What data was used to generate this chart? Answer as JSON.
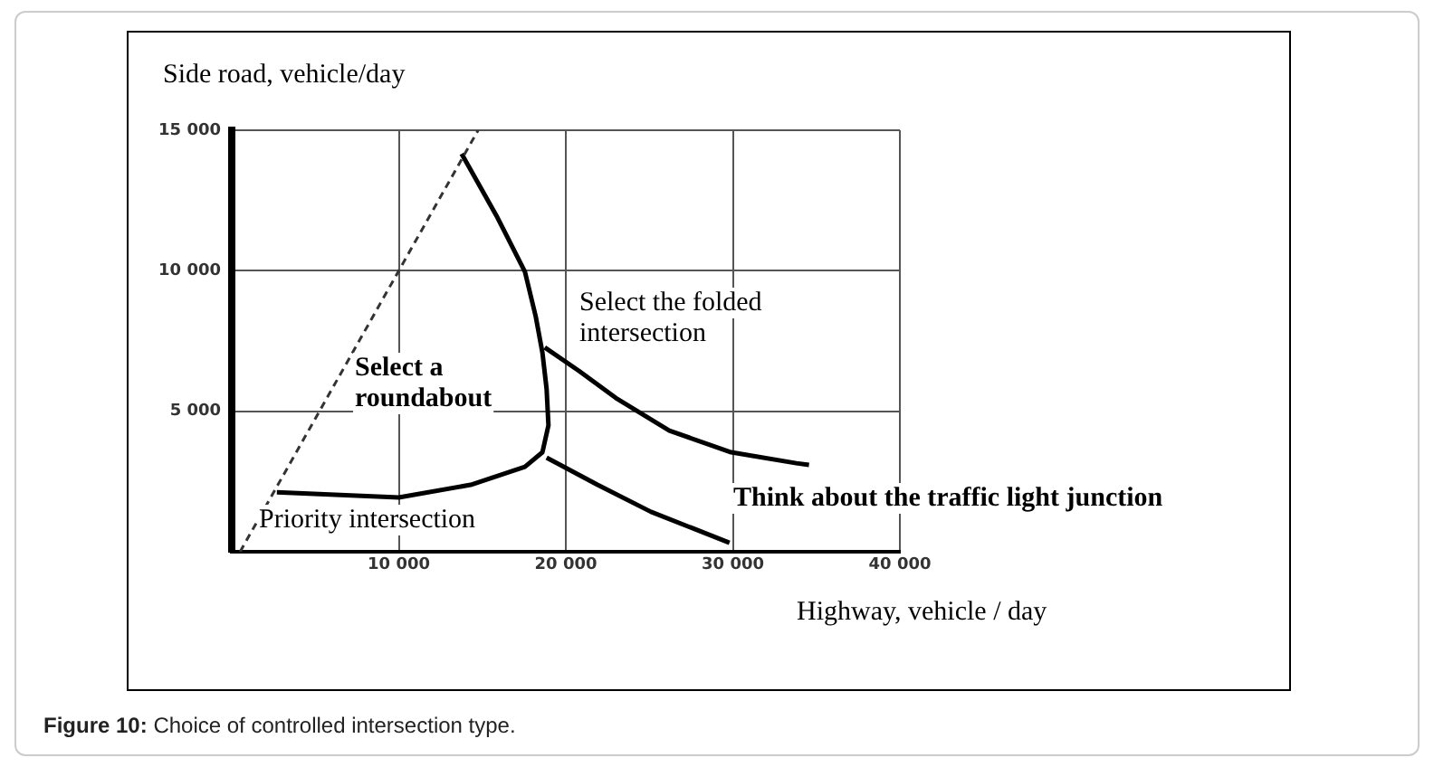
{
  "chart_data": {
    "type": "line",
    "xlabel": "Highway, vehicle / day",
    "ylabel": "Side road, vehicle/day",
    "xlim": [
      0,
      40000
    ],
    "ylim": [
      0,
      15000
    ],
    "xticks": [
      {
        "value": 10000,
        "label": "10 000"
      },
      {
        "value": 20000,
        "label": "20 000"
      },
      {
        "value": 30000,
        "label": "30 000"
      },
      {
        "value": 40000,
        "label": "40 000"
      }
    ],
    "yticks": [
      {
        "value": 5000,
        "label": "5 000"
      },
      {
        "value": 10000,
        "label": "10 000"
      },
      {
        "value": 15000,
        "label": "15 000"
      }
    ],
    "grid": true,
    "legend": false,
    "marker": "none",
    "series": [
      {
        "color": "#333333",
        "line_style": "dashed",
        "x": [
          500,
          14750
        ],
        "values": [
          0,
          15000
        ]
      },
      {
        "color": "#000000",
        "line_style": "solid",
        "x": [
          2700,
          10000,
          14300,
          17550,
          18600,
          18960,
          18850,
          18600,
          18200,
          17550,
          15900,
          13760
        ],
        "values": [
          2120,
          1930,
          2380,
          3020,
          3540,
          4500,
          5790,
          7080,
          8370,
          9970,
          11900,
          14160
        ]
      },
      {
        "color": "#000000",
        "line_style": "solid",
        "x": [
          18740,
          20800,
          23000,
          26200,
          29900,
          33800,
          34560
        ],
        "values": [
          7270,
          6430,
          5470,
          4310,
          3540,
          3150,
          3090
        ]
      },
      {
        "color": "#000000",
        "line_style": "solid",
        "x": [
          18850,
          21900,
          25100,
          29800
        ],
        "values": [
          3350,
          2380,
          1420,
          320
        ]
      }
    ],
    "annotations": [
      "Select a roundabout",
      "Select the folded intersection",
      "Think about the traffic light junction",
      "Priority intersection",
      "Figure 10: Choice of controlled intersection type."
    ]
  }
}
